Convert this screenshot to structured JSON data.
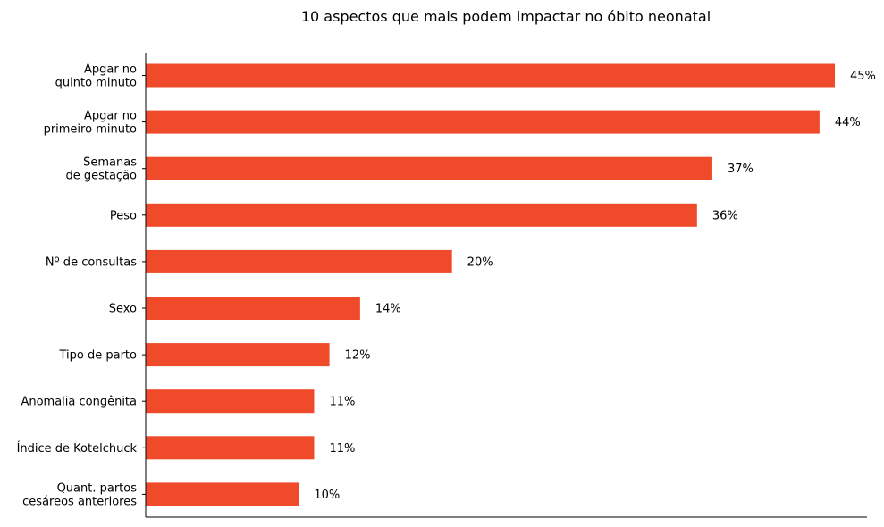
{
  "chart_data": {
    "type": "bar",
    "orientation": "horizontal",
    "title": "10 aspectos que mais podem impactar no óbito neonatal",
    "categories": [
      [
        "Apgar no",
        "quinto minuto"
      ],
      [
        "Apgar no",
        "primeiro minuto"
      ],
      [
        "Semanas",
        "de gestação"
      ],
      [
        "Peso"
      ],
      [
        "Nº de consultas"
      ],
      [
        "Sexo"
      ],
      [
        "Tipo de parto"
      ],
      [
        "Anomalia congênita"
      ],
      [
        "Índice de Kotelchuck"
      ],
      [
        "Quant. partos",
        "cesáreos anteriores"
      ]
    ],
    "values": [
      45,
      44,
      37,
      36,
      20,
      14,
      12,
      11,
      11,
      10
    ],
    "value_labels": [
      "45%",
      "44%",
      "37%",
      "36%",
      "20%",
      "14%",
      "12%",
      "11%",
      "11%",
      "10%"
    ],
    "bar_color": "#ef4b2b",
    "xlim": [
      0,
      47.1
    ],
    "xlabel": "",
    "ylabel": "",
    "grid": false,
    "legend": "none"
  }
}
